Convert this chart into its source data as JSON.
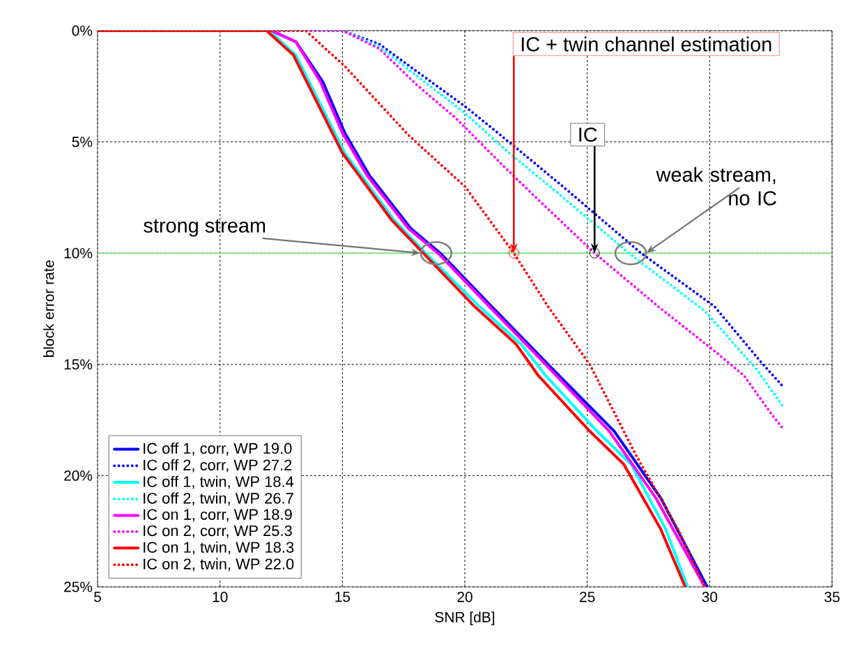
{
  "chart_data": {
    "type": "line",
    "xlabel": "SNR [dB]",
    "ylabel": "block error rate",
    "xlim": [
      5,
      35
    ],
    "xticks": [
      5,
      10,
      15,
      20,
      25,
      30,
      35
    ],
    "ylim": [
      25,
      0
    ],
    "yticks": [
      {
        "value": 0,
        "label": "0%"
      },
      {
        "value": 5,
        "label": "5%"
      },
      {
        "value": 10,
        "label": "10%"
      },
      {
        "value": 15,
        "label": "15%"
      },
      {
        "value": 20,
        "label": "20%"
      },
      {
        "value": 25,
        "label": "25%"
      }
    ],
    "grid": true,
    "legend": "bottom left",
    "marker": "none",
    "ref_lines": [
      {
        "axis": "y",
        "value": 10,
        "color": "#66ee66"
      }
    ],
    "annotations": [
      {
        "text": "IC + twin channel estimation",
        "x": 22,
        "y": 10
      },
      {
        "text": "IC",
        "x": 25.3,
        "y": 10
      },
      {
        "text": "weak stream, no IC",
        "x": 27.4,
        "y": 10
      },
      {
        "text": "strong stream",
        "x": 18.2,
        "y": 10
      }
    ],
    "series": [
      {
        "name": "IC off 1, corr, WP 19.0",
        "color": "#0000ff",
        "line_style": "solid",
        "x": [
          5,
          12.1,
          13.1,
          14.2,
          15.1,
          16.1,
          17.8,
          19.0,
          21.1,
          23.4,
          26.1,
          28,
          29.9
        ],
        "values": [
          0,
          0,
          0.5,
          2.3,
          4.6,
          6.5,
          8.9,
          10,
          12.4,
          15,
          18,
          21,
          25
        ]
      },
      {
        "name": "IC off 2, corr, WP 27.2",
        "color": "#0000ff",
        "line_style": "dotted",
        "x": [
          5,
          15,
          16.5,
          18,
          20,
          21.8,
          24,
          27.2,
          30.2,
          32.1,
          33
        ],
        "values": [
          0,
          0,
          0.6,
          1.8,
          3.4,
          5,
          7,
          10,
          12.4,
          14.9,
          16
        ]
      },
      {
        "name": "IC off 1, twin, WP 18.4",
        "color": "#00ffff",
        "line_style": "solid",
        "x": [
          5,
          12,
          13.1,
          15.1,
          17.1,
          18.4,
          20.6,
          22.3,
          23.3,
          25.4,
          26.8,
          28.2,
          29.1
        ],
        "values": [
          0,
          0,
          1.1,
          5.5,
          8.5,
          10,
          12.4,
          14.1,
          15.5,
          18,
          19.5,
          22.4,
          25
        ]
      },
      {
        "name": "IC off 2, twin, WP 26.7",
        "color": "#00ffff",
        "line_style": "dotted",
        "x": [
          5,
          15,
          16.5,
          18,
          20,
          21.6,
          23.8,
          26.7,
          29.8,
          31.9,
          33
        ],
        "values": [
          0,
          0,
          0.7,
          2,
          3.7,
          5.3,
          7.3,
          10,
          12.6,
          15.2,
          16.9
        ]
      },
      {
        "name": "IC on 1, corr, WP 18.9",
        "color": "#ff00ff",
        "line_style": "solid",
        "x": [
          5,
          12.1,
          13.1,
          14.1,
          15,
          16,
          17.7,
          18.9,
          21,
          23.3,
          25.9,
          27.8,
          29.8
        ],
        "values": [
          0,
          0,
          0.5,
          2.3,
          4.6,
          6.5,
          8.9,
          10,
          12.4,
          15,
          18,
          21,
          25
        ]
      },
      {
        "name": "IC on 2, corr, WP 25.3",
        "color": "#ff00ff",
        "line_style": "dotted",
        "x": [
          5,
          15,
          16.5,
          18,
          19.7,
          21.5,
          23,
          25.3,
          27.9,
          30.2,
          31.4,
          32.5,
          33
        ],
        "values": [
          0,
          0,
          0.8,
          2.4,
          4,
          6,
          7.6,
          10,
          12.4,
          14.4,
          15.5,
          17.2,
          17.9
        ]
      },
      {
        "name": "IC on 1, twin, WP 18.3",
        "color": "#ff0000",
        "line_style": "solid",
        "x": [
          5,
          11.9,
          13,
          15,
          17,
          18.3,
          20.4,
          22.1,
          23,
          25.1,
          26.5,
          28,
          29
        ],
        "values": [
          0,
          0,
          1.1,
          5.5,
          8.5,
          10,
          12.4,
          14.1,
          15.5,
          18,
          19.5,
          22.4,
          25
        ]
      },
      {
        "name": "IC on 2, twin, WP 22.0",
        "color": "#ff0000",
        "line_style": "dotted",
        "x": [
          5,
          13.5,
          15.1,
          17.7,
          20,
          22,
          23.4,
          25.1,
          27,
          28.7,
          29.8
        ],
        "values": [
          0,
          0,
          1.6,
          4.7,
          7,
          10,
          12.4,
          15,
          19.1,
          22.4,
          25
        ]
      }
    ]
  }
}
